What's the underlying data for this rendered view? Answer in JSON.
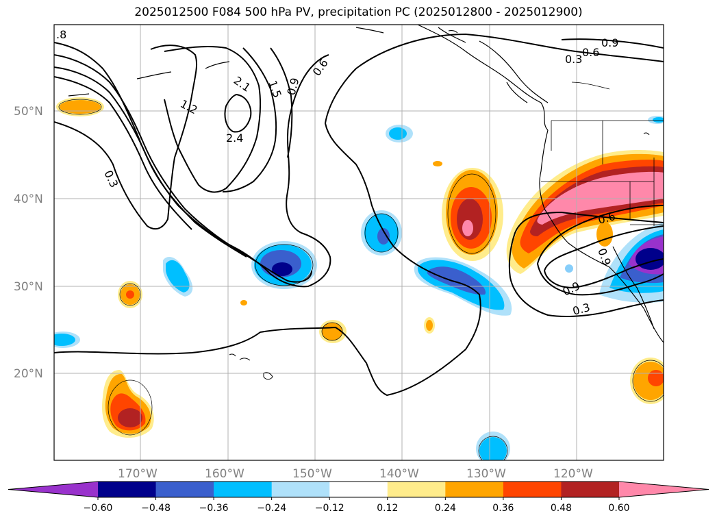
{
  "title": "2025012500 F084 500 hPa PV, precipitation PC (2025012800 - 2025012900)",
  "lat_labels": [
    "50°N",
    "40°N",
    "30°N",
    "20°N"
  ],
  "lon_labels": [
    "170°W",
    "160°W",
    "150°W",
    "140°W",
    "130°W",
    "120°W"
  ],
  "contour_labels": [
    ".8",
    "1.2",
    "2.1",
    "1.5",
    "0.9",
    "0.6",
    "2.4",
    "0.3",
    "0.6",
    "0.9",
    "0.3",
    "0.6",
    "0.9",
    "0.3",
    "0.9"
  ],
  "colorbar": {
    "ticks": [
      "−0.60",
      "−0.48",
      "−0.36",
      "−0.24",
      "−0.12",
      "0.12",
      "0.24",
      "0.36",
      "0.48",
      "0.60"
    ],
    "colors": [
      "#9932cc",
      "#00008b",
      "#3a5fcd",
      "#00bfff",
      "#afe1fa",
      "#ffffff",
      "#ffec8b",
      "#ffa500",
      "#ff4500",
      "#b22222",
      "#ff88aa"
    ]
  },
  "colors": {
    "land_outline": "#000000",
    "grid": "#b0b0b0",
    "pv_contour": "#000000"
  }
}
